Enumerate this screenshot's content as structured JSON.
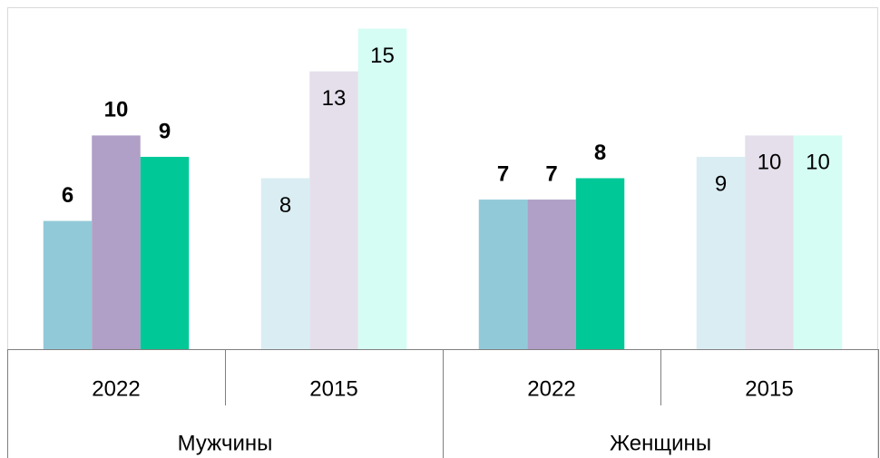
{
  "chart_data": {
    "type": "bar",
    "categories": [
      "2022",
      "2015",
      "2022",
      "2015"
    ],
    "groups": [
      {
        "label": "Мужчины",
        "span": 2
      },
      {
        "label": "Женщины",
        "span": 2
      }
    ],
    "series": [
      {
        "colors": [
          "#92c9d9",
          "#daedf3",
          "#92c9d9",
          "#daedf3"
        ],
        "values": [
          6,
          8,
          7,
          9
        ]
      },
      {
        "colors": [
          "#b09fc6",
          "#e5dfec",
          "#b09fc6",
          "#e5dfec"
        ],
        "values": [
          10,
          13,
          7,
          10
        ]
      },
      {
        "colors": [
          "#00c896",
          "#d5fdf3",
          "#00c896",
          "#d5fdf3"
        ],
        "values": [
          9,
          15,
          8,
          10
        ]
      }
    ],
    "label_bold": [
      true,
      false,
      true,
      false
    ],
    "label_position": [
      "outside",
      "inside",
      "outside",
      "inside"
    ],
    "ylim": [
      0,
      16
    ],
    "grid": false
  }
}
